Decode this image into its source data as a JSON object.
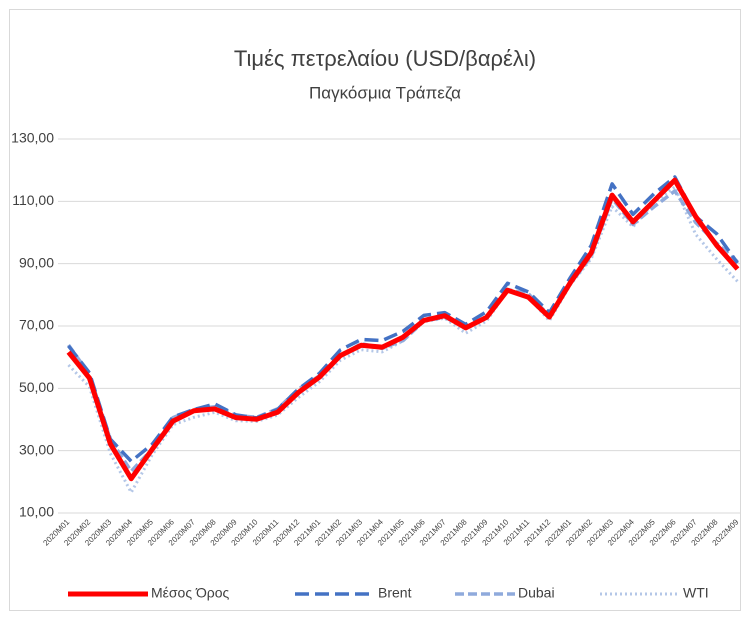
{
  "chart_data": {
    "type": "line",
    "title": "Τιμές πετρελαίου (USD/βαρέλι)",
    "subtitle": "Παγκόσμια Τράπεζα",
    "categories": [
      "2020M01",
      "2020M02",
      "2020M03",
      "2020M04",
      "2020M05",
      "2020M06",
      "2020M07",
      "2020M08",
      "2020M09",
      "2020M10",
      "2020M11",
      "2020M12",
      "2021M01",
      "2021M02",
      "2021M03",
      "2021M04",
      "2021M05",
      "2021M06",
      "2021M07",
      "2021M08",
      "2021M09",
      "2021M10",
      "2021M11",
      "2021M12",
      "2022M01",
      "2022M02",
      "2022M03",
      "2022M04",
      "2022M05",
      "2022M06",
      "2022M07",
      "2022M08",
      "2022M09"
    ],
    "series": [
      {
        "name": "Μέσος Όρος",
        "color": "#ff0000",
        "dash": "solid",
        "values": [
          61.6,
          53.3,
          32.2,
          21.0,
          30.4,
          39.5,
          42.8,
          43.4,
          40.6,
          40.1,
          42.3,
          48.7,
          53.6,
          60.5,
          63.8,
          63.2,
          66.4,
          71.8,
          73.3,
          69.4,
          72.8,
          81.5,
          79.2,
          72.9,
          83.9,
          93.5,
          112.0,
          103.4,
          110.1,
          116.8,
          105.1,
          95.9,
          88.3
        ]
      },
      {
        "name": "Brent",
        "color": "#4472c4",
        "dash": "long-dash",
        "values": [
          63.6,
          55.0,
          33.7,
          26.6,
          32.0,
          40.8,
          43.2,
          45.0,
          41.5,
          40.5,
          43.2,
          49.8,
          54.8,
          62.3,
          65.7,
          65.3,
          68.3,
          73.4,
          74.3,
          70.5,
          74.6,
          83.7,
          80.9,
          74.3,
          85.5,
          95.8,
          115.6,
          105.8,
          112.4,
          117.8,
          105.1,
          99.6,
          90.2
        ]
      },
      {
        "name": "Dubai",
        "color": "#8faadc",
        "dash": "dash",
        "values": [
          63.9,
          54.5,
          33.6,
          23.4,
          30.5,
          40.6,
          43.3,
          44.1,
          41.3,
          40.7,
          43.4,
          49.8,
          54.0,
          60.3,
          64.4,
          62.8,
          65.3,
          71.6,
          72.8,
          69.5,
          72.6,
          81.7,
          80.3,
          73.2,
          83.5,
          92.4,
          110.9,
          102.6,
          108.2,
          113.3,
          103.2,
          96.6,
          90.6
        ]
      },
      {
        "name": "WTI",
        "color": "#b4c7e7",
        "dash": "dot",
        "values": [
          57.5,
          50.5,
          29.2,
          16.6,
          28.6,
          38.3,
          40.7,
          42.3,
          39.6,
          39.4,
          41.4,
          47.1,
          52.1,
          59.0,
          62.4,
          61.7,
          65.2,
          71.4,
          72.5,
          67.7,
          71.6,
          81.3,
          79.2,
          71.7,
          83.2,
          91.6,
          108.3,
          101.8,
          109.6,
          114.6,
          99.4,
          91.5,
          84.3
        ]
      }
    ],
    "ylim": [
      10,
      130
    ],
    "yticks": [
      {
        "value": 10,
        "label": "10,00"
      },
      {
        "value": 30,
        "label": "30,00"
      },
      {
        "value": 50,
        "label": "50,00"
      },
      {
        "value": 70,
        "label": "70,00"
      },
      {
        "value": 90,
        "label": "90,00"
      },
      {
        "value": 110,
        "label": "110,00"
      },
      {
        "value": 130,
        "label": "130,00"
      }
    ],
    "grid": true,
    "legend": "bottom"
  }
}
